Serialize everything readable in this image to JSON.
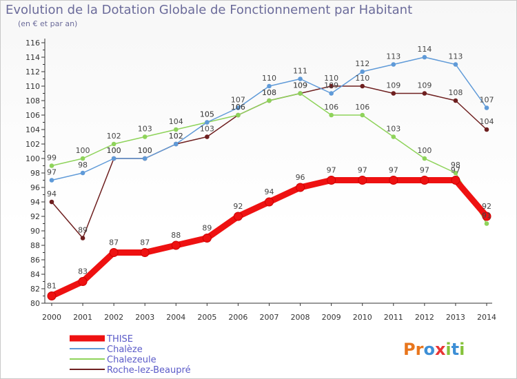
{
  "chart_data": {
    "type": "line",
    "title": "Evolution de la Dotation Globale de Fonctionnement par Habitant",
    "subtitle": "(en € et par an)",
    "xlabel": "",
    "ylabel": "",
    "ylim": [
      80,
      116
    ],
    "y_ticks": [
      80,
      82,
      84,
      86,
      88,
      90,
      92,
      94,
      96,
      98,
      100,
      102,
      104,
      106,
      108,
      110,
      112,
      114,
      116
    ],
    "categories": [
      "2000",
      "2001",
      "2002",
      "2003",
      "2004",
      "2005",
      "2006",
      "2007",
      "2008",
      "2009",
      "2010",
      "2011",
      "2012",
      "2013",
      "2014"
    ],
    "series": [
      {
        "name": "Roche-lez-Beaupré",
        "color": "#6e1f1f",
        "values": [
          94,
          89,
          100,
          100,
          102,
          103,
          106,
          108,
          109,
          110,
          110,
          109,
          109,
          108,
          104
        ]
      },
      {
        "name": "Chalezeule",
        "color": "#8ed35a",
        "values": [
          99,
          100,
          102,
          103,
          104,
          105,
          106,
          108,
          109,
          106,
          106,
          103,
          100,
          98,
          91
        ]
      },
      {
        "name": "Chalèze",
        "color": "#5f9ad8",
        "values": [
          97,
          98,
          100,
          100,
          102,
          105,
          107,
          110,
          111,
          109,
          112,
          113,
          114,
          113,
          107
        ]
      },
      {
        "name": "THISE",
        "color": "#ee1111",
        "values": [
          81,
          83,
          87,
          87,
          88,
          89,
          92,
          94,
          96,
          97,
          97,
          97,
          97,
          97,
          92
        ]
      }
    ],
    "legend": [
      "THISE",
      "Chalèze",
      "Chalezeule",
      "Roche-lez-Beaupré"
    ],
    "grid": false
  },
  "logo": {
    "text": "Proxiti",
    "letters": [
      "P",
      "r",
      "o",
      "x",
      "i",
      "t",
      "i"
    ]
  }
}
